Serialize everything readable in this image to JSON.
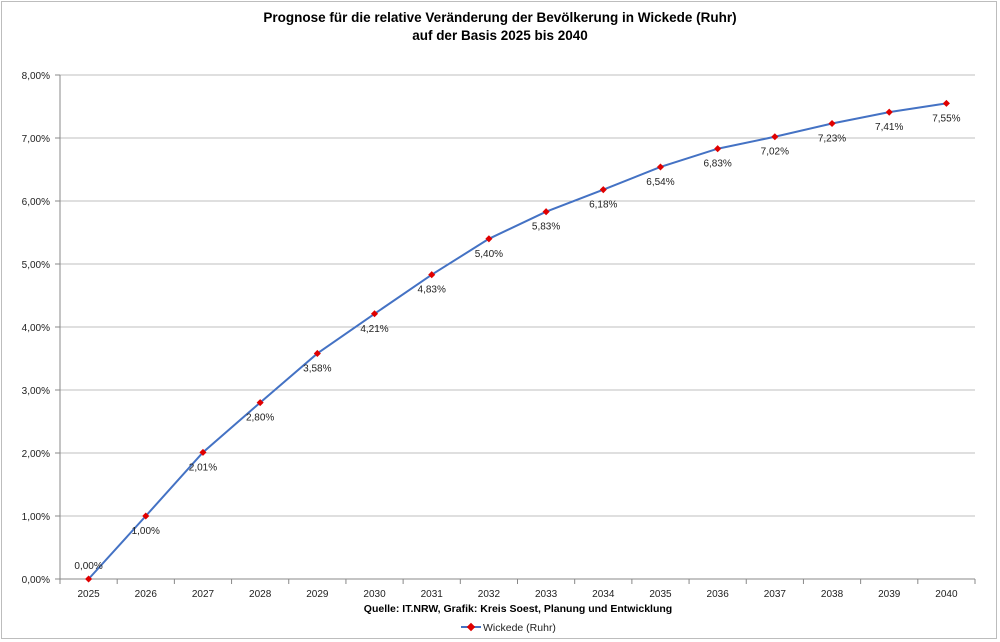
{
  "chart_data": {
    "type": "line",
    "title": "Prognose für die relative Veränderung der Bevölkerung in Wickede (Ruhr)",
    "subtitle": "auf der Basis 2025 bis 2040",
    "source": "Quelle: IT.NRW, Grafik: Kreis Soest, Planung und Entwicklung",
    "categories": [
      "2025",
      "2026",
      "2027",
      "2028",
      "2029",
      "2030",
      "2031",
      "2032",
      "2033",
      "2034",
      "2035",
      "2036",
      "2037",
      "2038",
      "2039",
      "2040"
    ],
    "series": [
      {
        "name": "Wickede (Ruhr)",
        "values": [
          0.0,
          1.0,
          2.01,
          2.8,
          3.58,
          4.21,
          4.83,
          5.4,
          5.83,
          6.18,
          6.54,
          6.83,
          7.02,
          7.23,
          7.41,
          7.55
        ],
        "labels": [
          "0,00%",
          "1,00%",
          "2,01%",
          "2,80%",
          "3,58%",
          "4,21%",
          "4,83%",
          "5,40%",
          "5,83%",
          "6,18%",
          "6,54%",
          "6,83%",
          "7,02%",
          "7,23%",
          "7,41%",
          "7,55%"
        ],
        "line_color": "#4472c4",
        "marker_color": "#e00000"
      }
    ],
    "ylim": [
      0,
      8
    ],
    "yticks": [
      0,
      1,
      2,
      3,
      4,
      5,
      6,
      7,
      8
    ],
    "ytick_labels": [
      "0,00%",
      "1,00%",
      "2,00%",
      "3,00%",
      "4,00%",
      "5,00%",
      "6,00%",
      "7,00%",
      "8,00%"
    ],
    "grid": true,
    "legend_position": "bottom"
  }
}
